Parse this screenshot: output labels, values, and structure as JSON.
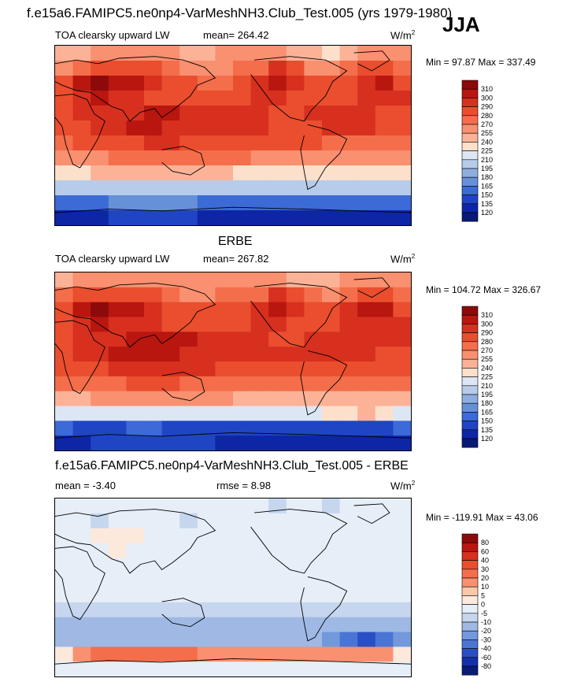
{
  "title": "f.e15a6.FAMIPC5.ne0np4-VarMeshNH3.Club_Test.005 (yrs 1979-1980)",
  "season": "JJA",
  "panels": [
    {
      "title": "",
      "variable": "TOA clearsky upward LW",
      "stat1": "mean= 264.42",
      "stat2": "",
      "units": "W/m",
      "units_sup": "2",
      "minmax": "Min =  97.87 Max = 337.49"
    },
    {
      "title": "ERBE",
      "variable": "TOA clearsky upward LW",
      "stat1": "mean= 267.82",
      "stat2": "",
      "units": "W/m",
      "units_sup": "2",
      "minmax": "Min = 104.72 Max = 326.67"
    },
    {
      "title": "f.e15a6.FAMIPC5.ne0np4-VarMeshNH3.Club_Test.005 - ERBE",
      "variable": "",
      "stat1": "mean =  -3.40",
      "stat2": "rmse =   8.98",
      "units": "W/m",
      "units_sup": "2",
      "minmax": "Min = -119.91 Max =  43.06"
    }
  ],
  "chart_data": [
    {
      "type": "heatmap",
      "title": "TOA clearsky upward LW",
      "units": "W/m2",
      "mean": 264.42,
      "min": 97.87,
      "max": 337.49,
      "colorbar_levels": [
        "310",
        "300",
        "290",
        "280",
        "270",
        "255",
        "240",
        "225",
        "210",
        "195",
        "180",
        "165",
        "150",
        "135",
        "120"
      ],
      "colorbar_colors": [
        "#8c0a0a",
        "#b8160f",
        "#d7301f",
        "#ea4e2e",
        "#f46e4b",
        "#f99070",
        "#fbb297",
        "#fde0cb",
        "#dde6f4",
        "#b7cbea",
        "#8eaee0",
        "#6690d8",
        "#3c6ad6",
        "#1f45c4",
        "#0d26a6",
        "#081a73"
      ],
      "field": [
        [
          245,
          250,
          255,
          258,
          262,
          258,
          255,
          252,
          250,
          255,
          260,
          262,
          255,
          245,
          240,
          235,
          250,
          258,
          262,
          255
        ],
        [
          268,
          275,
          280,
          285,
          285,
          280,
          270,
          262,
          262,
          268,
          270,
          272,
          290,
          280,
          265,
          262,
          270,
          282,
          285,
          275
        ],
        [
          280,
          300,
          310,
          308,
          300,
          290,
          285,
          280,
          275,
          275,
          280,
          290,
          305,
          295,
          285,
          280,
          285,
          298,
          300,
          285
        ],
        [
          285,
          295,
          300,
          298,
          295,
          288,
          285,
          282,
          280,
          282,
          285,
          290,
          295,
          285,
          280,
          282,
          288,
          292,
          295,
          290
        ],
        [
          285,
          290,
          290,
          295,
          298,
          300,
          300,
          298,
          295,
          295,
          292,
          290,
          285,
          285,
          292,
          295,
          295,
          290,
          288,
          288
        ],
        [
          280,
          288,
          295,
          298,
          300,
          300,
          298,
          295,
          293,
          292,
          292,
          290,
          288,
          288,
          288,
          290,
          292,
          290,
          285,
          280
        ],
        [
          275,
          280,
          282,
          285,
          288,
          290,
          290,
          288,
          286,
          285,
          285,
          285,
          283,
          282,
          280,
          278,
          278,
          278,
          276,
          275
        ],
        [
          262,
          265,
          268,
          270,
          272,
          272,
          272,
          270,
          270,
          270,
          270,
          268,
          268,
          265,
          265,
          265,
          265,
          265,
          264,
          262
        ],
        [
          235,
          238,
          240,
          240,
          242,
          242,
          242,
          240,
          240,
          240,
          238,
          238,
          236,
          235,
          235,
          235,
          236,
          236,
          235,
          235
        ],
        [
          195,
          200,
          200,
          202,
          205,
          205,
          205,
          202,
          200,
          200,
          198,
          196,
          195,
          195,
          195,
          196,
          198,
          198,
          196,
          195
        ],
        [
          150,
          155,
          160,
          165,
          170,
          170,
          168,
          165,
          160,
          158,
          155,
          155,
          152,
          150,
          150,
          152,
          155,
          158,
          155,
          150
        ],
        [
          120,
          125,
          130,
          135,
          138,
          140,
          138,
          135,
          132,
          130,
          128,
          125,
          124,
          122,
          122,
          124,
          126,
          128,
          125,
          120
        ]
      ]
    },
    {
      "type": "heatmap",
      "title": "ERBE",
      "units": "W/m2",
      "mean": 267.82,
      "min": 104.72,
      "max": 326.67,
      "colorbar_levels": [
        "310",
        "300",
        "290",
        "280",
        "270",
        "255",
        "240",
        "225",
        "210",
        "195",
        "180",
        "165",
        "150",
        "135",
        "120"
      ],
      "colorbar_colors": [
        "#8c0a0a",
        "#b8160f",
        "#d7301f",
        "#ea4e2e",
        "#f46e4b",
        "#f99070",
        "#fbb297",
        "#fde0cb",
        "#dde6f4",
        "#b7cbea",
        "#8eaee0",
        "#6690d8",
        "#3c6ad6",
        "#1f45c4",
        "#0d26a6",
        "#081a73"
      ],
      "field": [
        [
          250,
          255,
          258,
          262,
          265,
          262,
          258,
          256,
          255,
          258,
          262,
          265,
          262,
          250,
          245,
          242,
          255,
          262,
          265,
          258
        ],
        [
          272,
          280,
          285,
          288,
          288,
          284,
          275,
          268,
          266,
          270,
          272,
          275,
          292,
          284,
          270,
          266,
          275,
          286,
          288,
          278
        ],
        [
          285,
          302,
          310,
          306,
          300,
          292,
          288,
          284,
          280,
          280,
          284,
          292,
          306,
          298,
          288,
          284,
          290,
          300,
          302,
          288
        ],
        [
          288,
          296,
          300,
          298,
          296,
          290,
          288,
          285,
          284,
          285,
          288,
          292,
          296,
          288,
          284,
          286,
          290,
          294,
          296,
          292
        ],
        [
          288,
          292,
          292,
          296,
          300,
          302,
          302,
          300,
          298,
          298,
          295,
          292,
          288,
          288,
          295,
          298,
          298,
          292,
          290,
          290
        ],
        [
          285,
          292,
          298,
          300,
          302,
          302,
          300,
          298,
          296,
          295,
          295,
          293,
          292,
          292,
          292,
          294,
          295,
          292,
          288,
          284
        ],
        [
          280,
          285,
          287,
          290,
          292,
          294,
          294,
          292,
          290,
          288,
          288,
          288,
          287,
          286,
          284,
          282,
          282,
          282,
          280,
          280
        ],
        [
          270,
          272,
          275,
          277,
          280,
          280,
          280,
          278,
          277,
          277,
          276,
          275,
          274,
          272,
          272,
          272,
          272,
          272,
          271,
          270
        ],
        [
          250,
          252,
          255,
          256,
          258,
          258,
          258,
          256,
          255,
          255,
          254,
          253,
          252,
          250,
          250,
          250,
          252,
          252,
          251,
          250
        ],
        [
          215,
          215,
          220,
          220,
          222,
          222,
          222,
          220,
          218,
          218,
          216,
          215,
          214,
          214,
          214,
          225,
          235,
          245,
          230,
          216
        ],
        [
          150,
          145,
          140,
          145,
          150,
          150,
          148,
          145,
          142,
          140,
          138,
          136,
          135,
          135,
          135,
          138,
          140,
          145,
          145,
          150
        ],
        [
          125,
          130,
          135,
          138,
          140,
          142,
          140,
          138,
          135,
          132,
          130,
          128,
          126,
          125,
          125,
          126,
          128,
          130,
          128,
          125
        ]
      ]
    },
    {
      "type": "heatmap",
      "title": "f.e15a6.FAMIPC5.ne0np4-VarMeshNH3.Club_Test.005 - ERBE",
      "units": "W/m2",
      "mean": -3.4,
      "rmse": 8.98,
      "min": -119.91,
      "max": 43.06,
      "colorbar_levels": [
        "80",
        "60",
        "40",
        "30",
        "20",
        "10",
        "5",
        "0",
        "-5",
        "-10",
        "-20",
        "-30",
        "-40",
        "-60",
        "-80"
      ],
      "colorbar_colors": [
        "#8c0a0a",
        "#b8160f",
        "#d7301f",
        "#ea4e2e",
        "#f46e4b",
        "#f99070",
        "#fbc7ab",
        "#fde8dc",
        "#e6eef8",
        "#c6d6ee",
        "#9fb9e4",
        "#7399dc",
        "#4a75d4",
        "#2a4fc4",
        "#1330a8",
        "#0a1a7a"
      ],
      "field": [
        [
          -5,
          -4,
          -3,
          -4,
          -5,
          -3,
          -2,
          -3,
          -5,
          -3,
          -2,
          -3,
          -6,
          -4,
          -5,
          -6,
          -4,
          -4,
          -3,
          -4
        ],
        [
          -3,
          -5,
          -6,
          -4,
          -3,
          -3,
          -4,
          -6,
          -4,
          -3,
          -2,
          -4,
          -2,
          -4,
          -5,
          -4,
          -5,
          -4,
          -3,
          -2
        ],
        [
          -5,
          -3,
          0,
          2,
          0,
          -2,
          -3,
          -4,
          -5,
          -5,
          -4,
          -2,
          -1,
          -3,
          -3,
          -4,
          -5,
          -2,
          -2,
          -3
        ],
        [
          -3,
          -2,
          -1,
          0,
          -1,
          -2,
          -3,
          -3,
          -4,
          -3,
          -3,
          -2,
          -1,
          -3,
          -4,
          -4,
          -2,
          -2,
          -1,
          -2
        ],
        [
          -3,
          -2,
          -3,
          -2,
          -2,
          -2,
          -2,
          -2,
          -3,
          -3,
          -3,
          -2,
          -3,
          -3,
          -3,
          -3,
          -3,
          -2,
          -2,
          -2
        ],
        [
          -5,
          -4,
          -3,
          -2,
          -2,
          -2,
          -2,
          -3,
          -3,
          -3,
          -3,
          -3,
          -4,
          -4,
          -4,
          -4,
          -3,
          -2,
          -3,
          -4
        ],
        [
          -5,
          -5,
          -5,
          -5,
          -4,
          -4,
          -4,
          -4,
          -4,
          -3,
          -3,
          -3,
          -4,
          -4,
          -4,
          -4,
          -4,
          -4,
          -4,
          -5
        ],
        [
          -8,
          -7,
          -7,
          -7,
          -8,
          -8,
          -8,
          -8,
          -7,
          -7,
          -6,
          -7,
          -6,
          -7,
          -7,
          -7,
          -7,
          -7,
          -7,
          -8
        ],
        [
          -15,
          -14,
          -15,
          -16,
          -16,
          -16,
          -16,
          -16,
          -15,
          -15,
          -16,
          -15,
          -16,
          -15,
          -15,
          -15,
          -16,
          -16,
          -16,
          -15
        ],
        [
          -20,
          -15,
          -20,
          -18,
          -17,
          -17,
          -17,
          -18,
          -18,
          -18,
          -18,
          -19,
          -19,
          -19,
          -19,
          -29,
          -37,
          -47,
          -34,
          -21
        ],
        [
          0,
          10,
          20,
          20,
          20,
          20,
          20,
          20,
          18,
          18,
          17,
          19,
          17,
          15,
          15,
          14,
          15,
          13,
          10,
          0
        ],
        [
          -5,
          -5,
          -5,
          -3,
          -2,
          -2,
          -2,
          -3,
          -3,
          -2,
          -2,
          -3,
          -2,
          -3,
          -3,
          -2,
          -2,
          -2,
          -3,
          -5
        ]
      ]
    }
  ]
}
